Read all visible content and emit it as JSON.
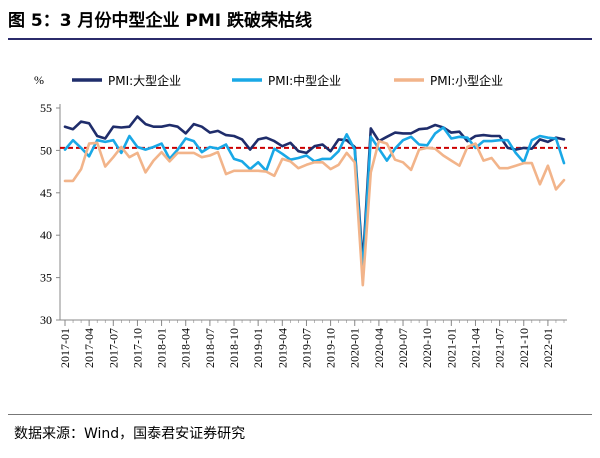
{
  "figure": {
    "title": "图 5：3 月份中型企业 PMI 跌破荣枯线",
    "source": "数据来源：Wind，国泰君安证券研究"
  },
  "chart_data": {
    "type": "line",
    "y_unit": "%",
    "ylim": [
      30,
      55
    ],
    "yticks": [
      30,
      35,
      40,
      45,
      50,
      55
    ],
    "reference_line": 50.3,
    "reference_line_color": "#cc0000",
    "grid": false,
    "legend_position": "top",
    "x_tick_labels": [
      "2017-01",
      "2017-04",
      "2017-07",
      "2017-10",
      "2018-01",
      "2018-04",
      "2018-07",
      "2018-10",
      "2019-01",
      "2019-04",
      "2019-07",
      "2019-10",
      "2020-01",
      "2020-04",
      "2020-07",
      "2020-10",
      "2021-01",
      "2021-04",
      "2021-07",
      "2021-10",
      "2022-01"
    ],
    "x": [
      "2017-01",
      "2017-02",
      "2017-03",
      "2017-04",
      "2017-05",
      "2017-06",
      "2017-07",
      "2017-08",
      "2017-09",
      "2017-10",
      "2017-11",
      "2017-12",
      "2018-01",
      "2018-02",
      "2018-03",
      "2018-04",
      "2018-05",
      "2018-06",
      "2018-07",
      "2018-08",
      "2018-09",
      "2018-10",
      "2018-11",
      "2018-12",
      "2019-01",
      "2019-02",
      "2019-03",
      "2019-04",
      "2019-05",
      "2019-06",
      "2019-07",
      "2019-08",
      "2019-09",
      "2019-10",
      "2019-11",
      "2019-12",
      "2020-01",
      "2020-02",
      "2020-03",
      "2020-04",
      "2020-05",
      "2020-06",
      "2020-07",
      "2020-08",
      "2020-09",
      "2020-10",
      "2020-11",
      "2020-12",
      "2021-01",
      "2021-02",
      "2021-03",
      "2021-04",
      "2021-05",
      "2021-06",
      "2021-07",
      "2021-08",
      "2021-09",
      "2021-10",
      "2021-11",
      "2021-12",
      "2022-01",
      "2022-02",
      "2022-03"
    ],
    "series": [
      {
        "name": "PMI:大型企业",
        "color": "#1f2d6b",
        "values": [
          52.8,
          52.5,
          53.4,
          53.2,
          51.7,
          51.4,
          52.8,
          52.7,
          52.8,
          54.0,
          53.1,
          52.8,
          52.8,
          53.0,
          52.8,
          52.0,
          53.1,
          52.8,
          52.1,
          52.3,
          51.8,
          51.7,
          51.3,
          50.1,
          51.3,
          51.5,
          51.1,
          50.5,
          50.9,
          49.9,
          49.7,
          50.5,
          50.7,
          49.9,
          51.3,
          51.2,
          50.4,
          36.6,
          52.6,
          51.1,
          51.6,
          52.1,
          52.0,
          52.0,
          52.5,
          52.6,
          53.0,
          52.7,
          52.1,
          52.2,
          51.1,
          51.7,
          51.8,
          51.7,
          51.7,
          50.3,
          50.1,
          50.3,
          50.2,
          51.3,
          51.0,
          51.5,
          51.3
        ]
      },
      {
        "name": "PMI:中型企业",
        "color": "#19a8e6",
        "values": [
          50.1,
          51.2,
          50.3,
          49.3,
          51.2,
          51.0,
          51.2,
          49.7,
          51.7,
          50.4,
          50.1,
          50.4,
          50.8,
          49.0,
          50.1,
          51.4,
          51.1,
          49.8,
          50.4,
          50.2,
          50.7,
          49.0,
          48.7,
          47.8,
          48.6,
          47.6,
          50.2,
          49.6,
          48.9,
          49.1,
          49.4,
          48.7,
          49.0,
          49.0,
          49.9,
          51.9,
          50.1,
          35.5,
          51.6,
          50.2,
          48.8,
          50.2,
          51.2,
          51.6,
          50.7,
          50.6,
          52.0,
          52.7,
          51.4,
          51.6,
          51.5,
          50.3,
          51.1,
          51.1,
          51.2,
          51.2,
          49.7,
          48.6,
          51.2,
          51.7,
          51.5,
          51.4,
          48.5
        ]
      },
      {
        "name": "PMI:小型企业",
        "color": "#f2b48a",
        "values": [
          46.4,
          46.4,
          47.8,
          50.8,
          50.9,
          48.1,
          49.2,
          50.4,
          49.2,
          49.7,
          47.4,
          48.8,
          49.8,
          48.7,
          49.7,
          49.7,
          49.7,
          49.2,
          49.4,
          49.8,
          47.2,
          47.6,
          47.6,
          47.6,
          47.6,
          47.5,
          47.0,
          49.0,
          48.7,
          47.9,
          48.3,
          48.6,
          48.6,
          47.8,
          48.3,
          49.7,
          48.6,
          34.1,
          47.4,
          51.1,
          50.8,
          48.9,
          48.6,
          47.7,
          50.1,
          50.3,
          50.2,
          49.4,
          48.8,
          48.2,
          50.4,
          50.8,
          48.8,
          49.1,
          47.9,
          47.9,
          48.2,
          48.5,
          48.5,
          46.0,
          48.2,
          45.4,
          46.5
        ]
      }
    ]
  }
}
